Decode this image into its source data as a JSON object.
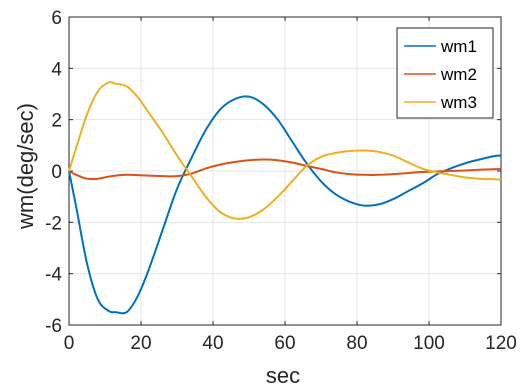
{
  "chart_data": {
    "type": "line",
    "title": "",
    "xlabel": "sec",
    "ylabel": "wm(deg/sec)",
    "xlim": [
      0,
      120
    ],
    "ylim": [
      -6,
      6
    ],
    "xticks": [
      "0",
      "20",
      "40",
      "60",
      "80",
      "100",
      "120"
    ],
    "yticks": [
      "-6",
      "-4",
      "-2",
      "0",
      "2",
      "4",
      "6"
    ],
    "grid": true,
    "legend_position": "top-right",
    "x": [
      0,
      2,
      5,
      8,
      11,
      13,
      16,
      19,
      22,
      26,
      30,
      34,
      38,
      42,
      46,
      50,
      54,
      58,
      62,
      66,
      70,
      74,
      78,
      82,
      86,
      90,
      94,
      98,
      102,
      106,
      110,
      114,
      118,
      120
    ],
    "series": [
      {
        "name": "wm1",
        "color": "#0072BD",
        "values": [
          0,
          -1.4,
          -3.6,
          -5.0,
          -5.45,
          -5.5,
          -5.5,
          -4.9,
          -3.9,
          -2.3,
          -0.7,
          0.5,
          1.6,
          2.4,
          2.8,
          2.9,
          2.6,
          2.0,
          1.15,
          0.3,
          -0.4,
          -0.9,
          -1.2,
          -1.35,
          -1.3,
          -1.1,
          -0.8,
          -0.5,
          -0.15,
          0.1,
          0.3,
          0.45,
          0.58,
          0.6
        ]
      },
      {
        "name": "wm2",
        "color": "#D95319",
        "values": [
          0,
          -0.15,
          -0.3,
          -0.3,
          -0.22,
          -0.18,
          -0.15,
          -0.16,
          -0.18,
          -0.2,
          -0.2,
          -0.1,
          0.1,
          0.25,
          0.35,
          0.42,
          0.45,
          0.42,
          0.33,
          0.2,
          0.08,
          -0.05,
          -0.12,
          -0.15,
          -0.15,
          -0.12,
          -0.08,
          -0.04,
          -0.02,
          0.0,
          0.02,
          0.05,
          0.07,
          0.08
        ]
      },
      {
        "name": "wm3",
        "color": "#EDB120",
        "values": [
          0,
          0.9,
          2.2,
          3.1,
          3.45,
          3.4,
          3.3,
          2.9,
          2.3,
          1.5,
          0.6,
          -0.2,
          -1.0,
          -1.6,
          -1.85,
          -1.8,
          -1.5,
          -1.0,
          -0.4,
          0.2,
          0.55,
          0.7,
          0.78,
          0.8,
          0.75,
          0.6,
          0.35,
          0.1,
          -0.05,
          -0.15,
          -0.25,
          -0.3,
          -0.32,
          -0.33
        ]
      }
    ]
  }
}
